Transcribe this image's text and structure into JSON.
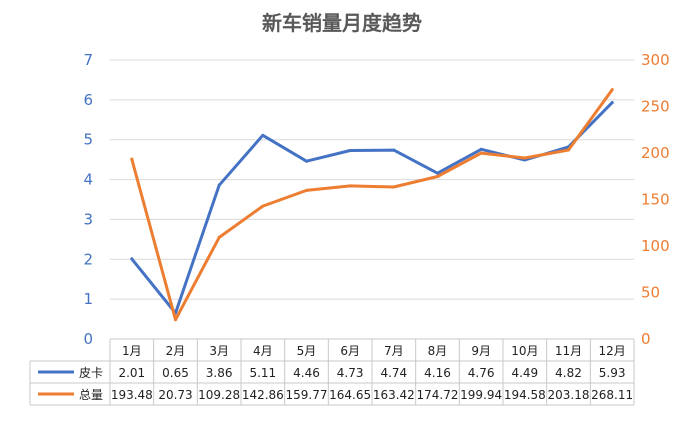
{
  "chart_data": {
    "type": "line",
    "title": "新车销量月度趋势",
    "categories": [
      "1月",
      "2月",
      "3月",
      "4月",
      "5月",
      "6月",
      "7月",
      "8月",
      "9月",
      "10月",
      "11月",
      "12月"
    ],
    "series": [
      {
        "name": "皮卡",
        "axis": "left",
        "color": "#4472c4",
        "values": [
          2.01,
          0.65,
          3.86,
          5.11,
          4.46,
          4.73,
          4.74,
          4.16,
          4.76,
          4.49,
          4.82,
          5.93
        ],
        "labels": [
          "2.01",
          "0.65",
          "3.86",
          "5.11",
          "4.46",
          "4.73",
          "4.74",
          "4.16",
          "4.76",
          "4.49",
          "4.82",
          "5.93"
        ]
      },
      {
        "name": "总量",
        "axis": "right",
        "color": "#ed7d31",
        "values": [
          193.48,
          20.73,
          109.28,
          142.86,
          159.77,
          164.65,
          163.42,
          174.72,
          199.94,
          194.58,
          203.18,
          268.11
        ],
        "labels": [
          "193.48",
          "20.73",
          "109.28",
          "142.86",
          "159.77",
          "164.65",
          "163.42",
          "174.72",
          "199.94",
          "194.58",
          "203.18",
          "268.11"
        ]
      }
    ],
    "y_left": {
      "min": 0,
      "max": 7,
      "ticks": [
        "0",
        "1",
        "2",
        "3",
        "4",
        "5",
        "6",
        "7"
      ]
    },
    "y_right": {
      "min": 0,
      "max": 300,
      "ticks": [
        "0",
        "50",
        "100",
        "150",
        "200",
        "250",
        "300"
      ]
    },
    "grid": true,
    "legend": "data-table-left"
  }
}
